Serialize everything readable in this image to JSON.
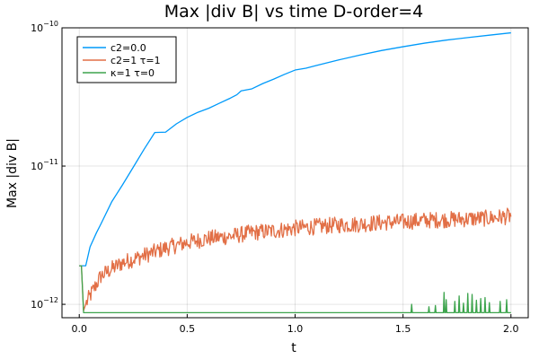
{
  "chart_data": {
    "type": "line",
    "title": "Max |div B| vs time D-order=4",
    "xlabel": "t",
    "ylabel": "Max |div B|",
    "xlim": [
      -0.08,
      2.08
    ],
    "ylim": [
      8e-13,
      1e-10
    ],
    "yscale": "log",
    "grid": true,
    "legend_position": "top-left",
    "x_ticks": [
      {
        "value": 0.0,
        "label": "0.0"
      },
      {
        "value": 0.5,
        "label": "0.5"
      },
      {
        "value": 1.0,
        "label": "1.0"
      },
      {
        "value": 1.5,
        "label": "1.5"
      },
      {
        "value": 2.0,
        "label": "2.0"
      }
    ],
    "y_ticks": [
      {
        "value": 1e-12,
        "base": "10",
        "exp": "−12"
      },
      {
        "value": 1e-11,
        "base": "10",
        "exp": "−11"
      },
      {
        "value": 1e-10,
        "base": "10",
        "exp": "−10"
      }
    ],
    "series": [
      {
        "name": "c2=0.0",
        "color": "#009AFA",
        "x": [
          0.0,
          0.03,
          0.05,
          0.08,
          0.1,
          0.15,
          0.2,
          0.25,
          0.3,
          0.35,
          0.4,
          0.45,
          0.5,
          0.55,
          0.6,
          0.65,
          0.7,
          0.73,
          0.75,
          0.8,
          0.85,
          0.9,
          0.95,
          1.0,
          1.05,
          1.1,
          1.2,
          1.3,
          1.4,
          1.5,
          1.6,
          1.7,
          1.8,
          1.9,
          2.0
        ],
        "y": [
          1.9e-12,
          1.9e-12,
          2.6e-12,
          3.3e-12,
          3.8e-12,
          5.5e-12,
          7.3e-12,
          9.8e-12,
          1.32e-11,
          1.75e-11,
          1.76e-11,
          2.02e-11,
          2.25e-11,
          2.45e-11,
          2.62e-11,
          2.85e-11,
          3.1e-11,
          3.28e-11,
          3.5e-11,
          3.62e-11,
          3.95e-11,
          4.25e-11,
          4.6e-11,
          4.95e-11,
          5.1e-11,
          5.35e-11,
          5.85e-11,
          6.35e-11,
          6.85e-11,
          7.3e-11,
          7.75e-11,
          8.15e-11,
          8.5e-11,
          8.85e-11,
          9.2e-11
        ]
      },
      {
        "name": "c2=1 τ=1",
        "color": "#E26F46",
        "x": [
          0.0,
          0.01,
          0.02,
          0.03,
          0.05,
          0.1,
          0.15,
          0.2,
          0.3,
          0.4,
          0.5,
          0.6,
          0.7,
          0.8,
          0.9,
          1.0,
          1.1,
          1.2,
          1.3,
          1.4,
          1.5,
          1.6,
          1.7,
          1.8,
          1.9,
          2.0
        ],
        "y": [
          1.9e-12,
          1.9e-12,
          9e-13,
          1e-12,
          1.15e-12,
          1.6e-12,
          1.8e-12,
          2e-12,
          2.25e-12,
          2.55e-12,
          2.8e-12,
          3e-12,
          3.1e-12,
          3.3e-12,
          3.4e-12,
          3.55e-12,
          3.65e-12,
          3.75e-12,
          3.8e-12,
          3.9e-12,
          3.95e-12,
          4.05e-12,
          4.1e-12,
          4.15e-12,
          4.2e-12,
          4.35e-12
        ],
        "noise_amplitude": 0.06
      },
      {
        "name": "κ=1 τ=0",
        "color": "#3DA44D",
        "x": [
          0.0,
          0.01,
          0.02,
          2.0
        ],
        "y": [
          1.9e-12,
          1.9e-12,
          8.7e-13,
          8.7e-13
        ],
        "spikes": [
          {
            "x": 1.54,
            "y": 1e-12
          },
          {
            "x": 1.62,
            "y": 9.6e-13
          },
          {
            "x": 1.65,
            "y": 9.8e-13
          },
          {
            "x": 1.69,
            "y": 1.22e-12
          },
          {
            "x": 1.7,
            "y": 1.08e-12
          },
          {
            "x": 1.74,
            "y": 1.05e-12
          },
          {
            "x": 1.76,
            "y": 1.15e-12
          },
          {
            "x": 1.78,
            "y": 1.02e-12
          },
          {
            "x": 1.8,
            "y": 1.2e-12
          },
          {
            "x": 1.82,
            "y": 1.18e-12
          },
          {
            "x": 1.84,
            "y": 1.07e-12
          },
          {
            "x": 1.86,
            "y": 1.1e-12
          },
          {
            "x": 1.88,
            "y": 1.12e-12
          },
          {
            "x": 1.9,
            "y": 1.03e-12
          },
          {
            "x": 1.95,
            "y": 1.05e-12
          },
          {
            "x": 1.98,
            "y": 1.08e-12
          }
        ]
      }
    ]
  }
}
